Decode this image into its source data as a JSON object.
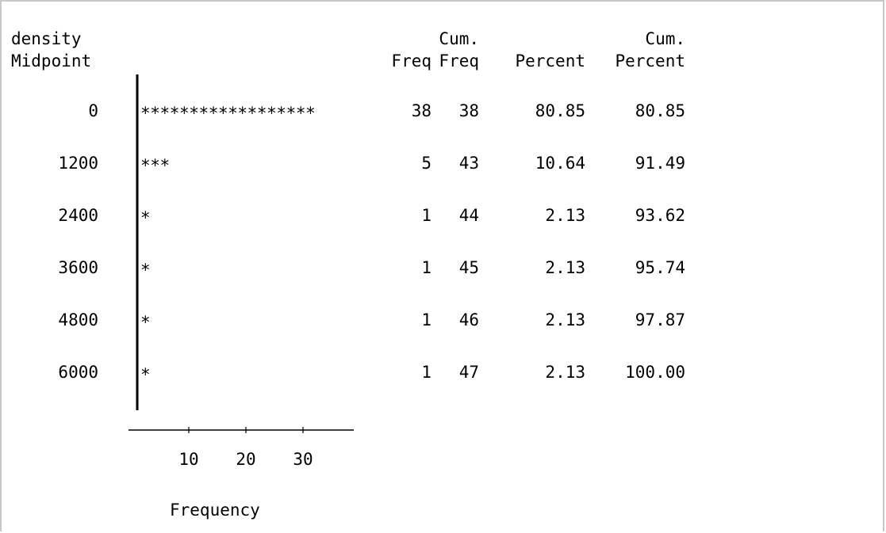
{
  "chart_data": {
    "type": "bar",
    "orientation": "horizontal",
    "variable_label": "density",
    "midpoint_label": "Midpoint",
    "headers": {
      "freq": "Freq",
      "cum_top": "Cum.",
      "cum_freq": "Freq",
      "percent": "Percent",
      "cum_percent": "Percent"
    },
    "categories": [
      "0",
      "1200",
      "2400",
      "3600",
      "4800",
      "6000"
    ],
    "values": [
      38,
      5,
      1,
      1,
      1,
      1
    ],
    "rows": [
      {
        "midpoint": "0",
        "bar": "******************",
        "freq": "38",
        "cum_freq": "38",
        "percent": "80.85",
        "cum_percent": "80.85"
      },
      {
        "midpoint": "1200",
        "bar": "***",
        "freq": "5",
        "cum_freq": "43",
        "percent": "10.64",
        "cum_percent": "91.49"
      },
      {
        "midpoint": "2400",
        "bar": "*",
        "freq": "1",
        "cum_freq": "44",
        "percent": "2.13",
        "cum_percent": "93.62"
      },
      {
        "midpoint": "3600",
        "bar": "*",
        "freq": "1",
        "cum_freq": "45",
        "percent": "2.13",
        "cum_percent": "95.74"
      },
      {
        "midpoint": "4800",
        "bar": "*",
        "freq": "1",
        "cum_freq": "46",
        "percent": "2.13",
        "cum_percent": "97.87"
      },
      {
        "midpoint": "6000",
        "bar": "*",
        "freq": "1",
        "cum_freq": "47",
        "percent": "2.13",
        "cum_percent": "100.00"
      }
    ],
    "x_ticks": [
      "10",
      "20",
      "30"
    ],
    "xlabel": "Frequency",
    "grid": false
  }
}
